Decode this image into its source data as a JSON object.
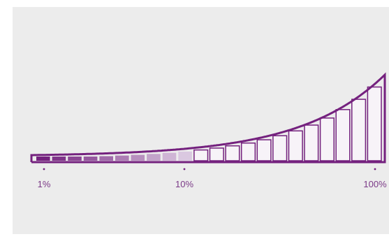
{
  "scale": {
    "ticks": [
      {
        "label": "1%"
      },
      {
        "label": "10%"
      },
      {
        "label": "100%"
      }
    ],
    "filled_fraction": 0.45,
    "bar_count": 22
  },
  "colors": {
    "panel_background": "#ececec",
    "outline": "#74217e",
    "fill_dark": "#74217e",
    "fill_light": "#dac8e0",
    "empty_bar": "#f7f3f8",
    "tick_text": "#7b3a87"
  }
}
